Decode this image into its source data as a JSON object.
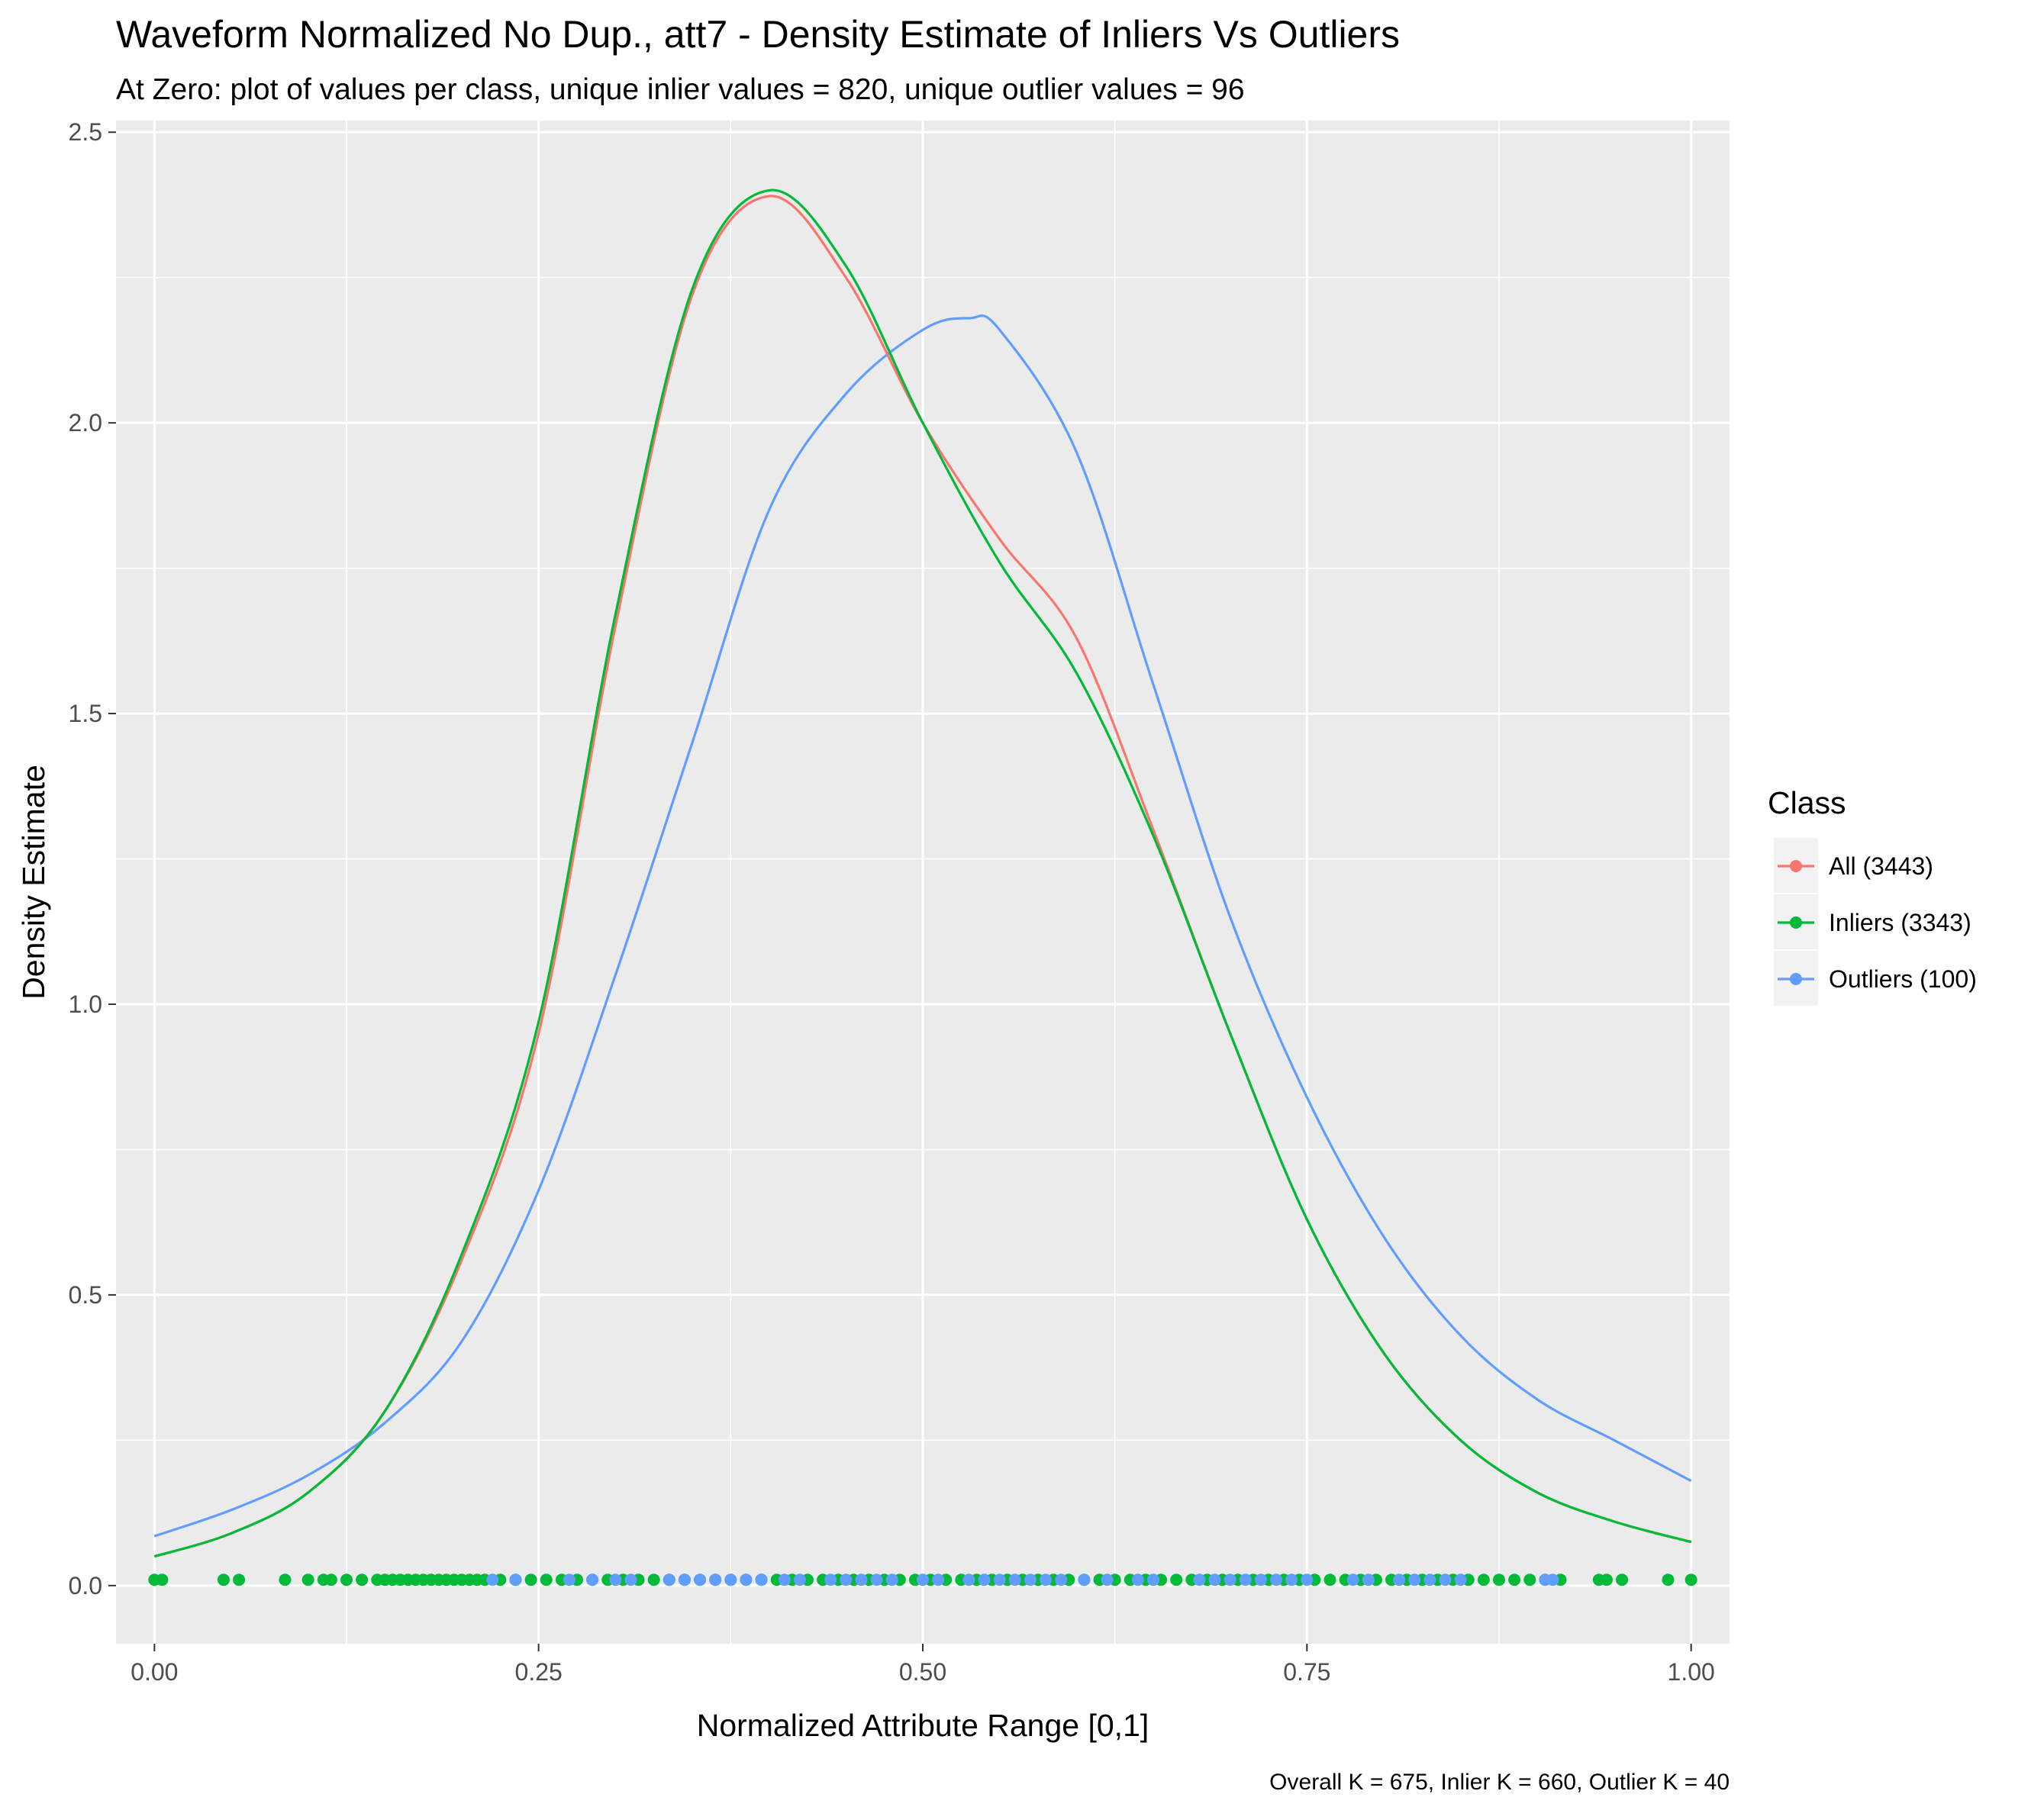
{
  "chart_data": {
    "type": "line",
    "title": "Waveform Normalized No Dup., att7 - Density Estimate of Inliers Vs Outliers",
    "subtitle": "At Zero: plot of values per class, unique inlier values = 820, unique outlier values = 96",
    "xlabel": "Normalized Attribute Range [0,1]",
    "ylabel": "Density Estimate",
    "caption": "Overall K = 675, Inlier K = 660, Outlier K = 40",
    "xlim": [
      -0.025,
      1.025
    ],
    "ylim": [
      -0.1,
      2.52
    ],
    "x_ticks": [
      0,
      0.25,
      0.5,
      0.75,
      1
    ],
    "x_tick_labels": [
      "0.00",
      "0.25",
      "0.50",
      "0.75",
      "1.00"
    ],
    "y_ticks": [
      0,
      0.5,
      1,
      1.5,
      2,
      2.5
    ],
    "y_tick_labels": [
      "0.0",
      "0.5",
      "1.0",
      "1.5",
      "2.0",
      "2.5"
    ],
    "grid": true,
    "legend_title": "Class",
    "legend_position": "right",
    "series": [
      {
        "name": "All (3443)",
        "color": "#F8766D",
        "x": [
          0,
          0.05,
          0.1,
          0.15,
          0.2,
          0.25,
          0.3,
          0.35,
          0.4,
          0.45,
          0.5,
          0.55,
          0.6,
          0.65,
          0.7,
          0.75,
          0.8,
          0.85,
          0.9,
          0.95,
          1
        ],
        "y": [
          0.05,
          0.09,
          0.16,
          0.3,
          0.56,
          0.95,
          1.65,
          2.22,
          2.39,
          2.25,
          2.0,
          1.8,
          1.63,
          1.3,
          0.95,
          0.63,
          0.4,
          0.25,
          0.16,
          0.11,
          0.075
        ]
      },
      {
        "name": "Inliers (3343)",
        "color": "#00BA38",
        "x": [
          0,
          0.05,
          0.1,
          0.15,
          0.2,
          0.25,
          0.3,
          0.35,
          0.4,
          0.45,
          0.5,
          0.55,
          0.6,
          0.65,
          0.7,
          0.75,
          0.8,
          0.85,
          0.9,
          0.95,
          1
        ],
        "y": [
          0.05,
          0.09,
          0.16,
          0.3,
          0.57,
          0.97,
          1.67,
          2.23,
          2.4,
          2.27,
          2.0,
          1.76,
          1.57,
          1.29,
          0.95,
          0.63,
          0.4,
          0.25,
          0.16,
          0.11,
          0.075
        ]
      },
      {
        "name": "Outliers (100)",
        "color": "#619CFF",
        "x": [
          0,
          0.05,
          0.1,
          0.15,
          0.2,
          0.25,
          0.3,
          0.35,
          0.4,
          0.45,
          0.5,
          0.53,
          0.55,
          0.6,
          0.65,
          0.7,
          0.75,
          0.8,
          0.85,
          0.9,
          0.95,
          1
        ],
        "y": [
          0.085,
          0.13,
          0.19,
          0.28,
          0.42,
          0.68,
          1.05,
          1.45,
          1.85,
          2.05,
          2.16,
          2.18,
          2.16,
          1.95,
          1.55,
          1.15,
          0.84,
          0.6,
          0.43,
          0.32,
          0.25,
          0.18
        ]
      }
    ],
    "rug": {
      "y": 0.01,
      "inliers": [
        0,
        0.005,
        0.045,
        0.055,
        0.085,
        0.1,
        0.11,
        0.115,
        0.125,
        0.135,
        0.145,
        0.15,
        0.155,
        0.16,
        0.165,
        0.17,
        0.175,
        0.18,
        0.185,
        0.19,
        0.195,
        0.2,
        0.205,
        0.21,
        0.215,
        0.225,
        0.235,
        0.245,
        0.255,
        0.265,
        0.275,
        0.285,
        0.295,
        0.305,
        0.315,
        0.325,
        0.335,
        0.345,
        0.355,
        0.365,
        0.375,
        0.385,
        0.395,
        0.405,
        0.415,
        0.425,
        0.435,
        0.445,
        0.455,
        0.465,
        0.475,
        0.485,
        0.495,
        0.505,
        0.515,
        0.525,
        0.535,
        0.545,
        0.555,
        0.565,
        0.575,
        0.585,
        0.595,
        0.605,
        0.615,
        0.625,
        0.635,
        0.645,
        0.655,
        0.665,
        0.675,
        0.685,
        0.695,
        0.705,
        0.715,
        0.725,
        0.735,
        0.745,
        0.755,
        0.765,
        0.775,
        0.785,
        0.795,
        0.805,
        0.815,
        0.825,
        0.835,
        0.845,
        0.855,
        0.865,
        0.875,
        0.885,
        0.895,
        0.905,
        0.915,
        0.94,
        0.945,
        0.955,
        0.985,
        1.0
      ],
      "outliers": [
        0.22,
        0.235,
        0.27,
        0.285,
        0.3,
        0.31,
        0.335,
        0.345,
        0.355,
        0.365,
        0.375,
        0.385,
        0.395,
        0.41,
        0.42,
        0.44,
        0.45,
        0.46,
        0.47,
        0.48,
        0.5,
        0.51,
        0.53,
        0.54,
        0.55,
        0.56,
        0.57,
        0.58,
        0.59,
        0.605,
        0.62,
        0.64,
        0.65,
        0.68,
        0.69,
        0.7,
        0.71,
        0.72,
        0.73,
        0.74,
        0.75,
        0.78,
        0.79,
        0.81,
        0.82,
        0.83,
        0.84,
        0.85,
        0.905,
        0.91
      ]
    }
  }
}
